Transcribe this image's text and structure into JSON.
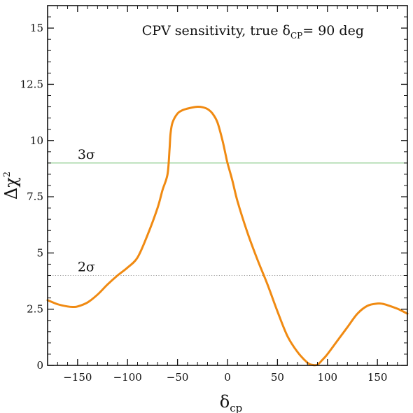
{
  "chart_data": {
    "type": "line",
    "title_main": "CPV sensitivity, true δ",
    "title_sub": "CP",
    "title_tail": "= 90 deg",
    "xlabel_main": "δ",
    "xlabel_sub": "cp",
    "ylabel_main": "Δχ",
    "ylabel_sup": "2",
    "xlim": [
      -180,
      180
    ],
    "ylim": [
      0,
      16
    ],
    "x_ticks": [
      -150,
      -100,
      -50,
      0,
      50,
      100,
      150
    ],
    "x_tick_labels": [
      "−150",
      "−100",
      "−50",
      "0",
      "50",
      "100",
      "150"
    ],
    "y_ticks": [
      0,
      2.5,
      5,
      7.5,
      10,
      12.5,
      15
    ],
    "y_tick_labels": [
      "0",
      "2.5",
      "5",
      "7.5",
      "10",
      "12.5",
      "15"
    ],
    "grid": false,
    "series": [
      {
        "color": "#f08a12",
        "x": [
          -180,
          -170,
          -160,
          -155,
          -150,
          -140,
          -130,
          -120,
          -110,
          -100,
          -90,
          -80,
          -70,
          -65,
          -60,
          -58,
          -57,
          -55,
          -50,
          -45,
          -40,
          -35,
          -30,
          -25,
          -20,
          -15,
          -10,
          -5,
          -2,
          0,
          5,
          10,
          20,
          30,
          40,
          50,
          60,
          70,
          80,
          85,
          90,
          95,
          100,
          110,
          120,
          130,
          140,
          150,
          155,
          160,
          170,
          180
        ],
        "y": [
          2.9,
          2.72,
          2.62,
          2.6,
          2.62,
          2.8,
          3.15,
          3.6,
          4.0,
          4.35,
          4.8,
          5.8,
          7.0,
          7.8,
          8.5,
          9.6,
          10.3,
          10.8,
          11.2,
          11.35,
          11.42,
          11.47,
          11.5,
          11.48,
          11.4,
          11.2,
          10.8,
          10.0,
          9.4,
          9.0,
          8.2,
          7.3,
          5.9,
          4.7,
          3.6,
          2.4,
          1.3,
          0.6,
          0.12,
          0.02,
          0.03,
          0.25,
          0.5,
          1.1,
          1.7,
          2.3,
          2.65,
          2.75,
          2.74,
          2.68,
          2.52,
          2.3
        ]
      }
    ],
    "reference_lines": [
      {
        "y": 9,
        "label": "3σ",
        "color": "#7cc47c",
        "style": "solid"
      },
      {
        "y": 4,
        "label": "2σ",
        "color": "#9a9a9a",
        "style": "dotted"
      }
    ]
  }
}
